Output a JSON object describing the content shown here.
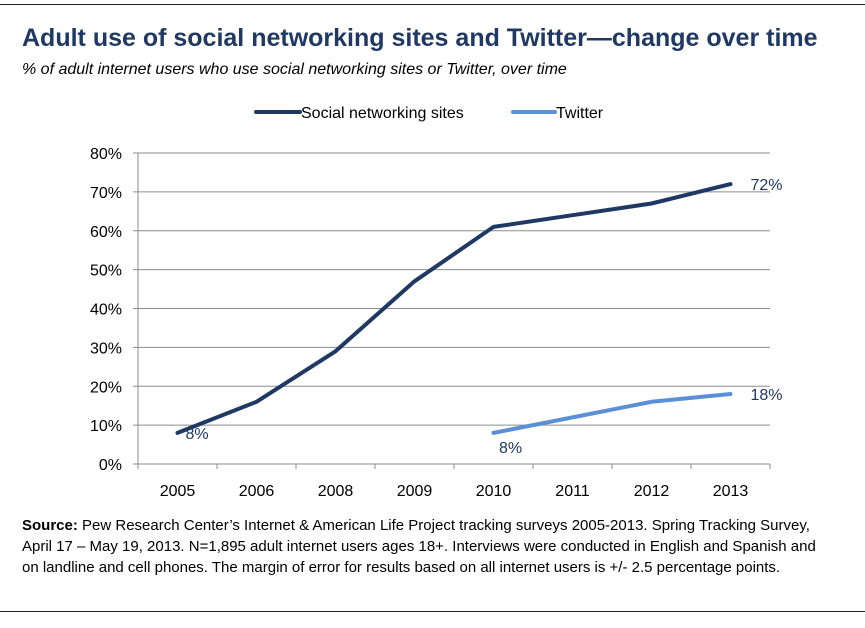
{
  "chart_data": {
    "type": "line",
    "title": "Adult use of social networking sites and Twitter—change over time",
    "subtitle": "% of adult internet users who use social networking sites or Twitter, over time",
    "categories": [
      "2005",
      "2006",
      "2008",
      "2009",
      "2010",
      "2011",
      "2012",
      "2013"
    ],
    "series": [
      {
        "name": "Social networking sites",
        "color": "#1f3864",
        "values": [
          8,
          16,
          29,
          47,
          61,
          64,
          67,
          72
        ]
      },
      {
        "name": "Twitter",
        "color": "#5b8fd6",
        "values": [
          null,
          null,
          null,
          null,
          8,
          12,
          16,
          18
        ]
      }
    ],
    "ylim": [
      0,
      80
    ],
    "yticks": [
      "0%",
      "10%",
      "20%",
      "30%",
      "40%",
      "50%",
      "60%",
      "70%",
      "80%"
    ],
    "grid": true,
    "legend": "top-center",
    "data_labels": [
      {
        "series": 0,
        "index": 0,
        "text": "8%"
      },
      {
        "series": 0,
        "index": 7,
        "text": "72%"
      },
      {
        "series": 1,
        "index": 4,
        "text": "8%"
      },
      {
        "series": 1,
        "index": 7,
        "text": "18%"
      }
    ]
  },
  "source": {
    "label": "Source:",
    "text": " Pew Research Center’s Internet & American Life Project tracking surveys 2005-2013. Spring Tracking Survey, April 17 – May 19, 2013. N=1,895 adult internet users ages 18+. Interviews were conducted in English and Spanish and on landline and cell phones.  The margin of error for results based on all internet users is +/- 2.5 percentage points."
  }
}
